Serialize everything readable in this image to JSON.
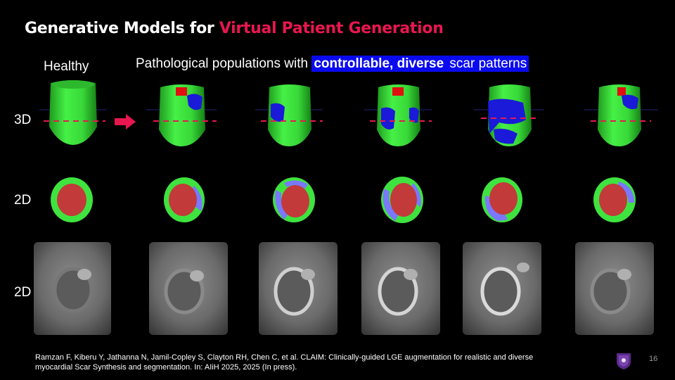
{
  "slide": {
    "title_main": "Generative Models for ",
    "title_accent": "Virtual Patient Generation",
    "label_healthy": "Healthy",
    "label_path_prefix": "Pathological populations with ",
    "label_path_highlight": "controllable, diverse",
    "label_path_suffix": " scar patterns",
    "row_labels": [
      "3D",
      "2D",
      "2D"
    ],
    "citation_line1": "Ramzan F, Kiberu Y, Jathanna N, Jamil-Copley S, Clayton RH, Chen C, et al. CLAIM: Clinically-guided LGE augmentation for realistic and diverse",
    "citation_line2": "myocardial Scar Synthesis and segmentation. In: AIiH 2025, 2025 (In press).",
    "page_number": "16"
  },
  "colors": {
    "accent": "#e8174f",
    "highlight": "#0a0af0",
    "myocardium": "#3fe33f",
    "scar": "#1a1ad8",
    "blood_pool": "#c23a3a"
  },
  "icons": [
    "right-arrow-icon",
    "university-crest-icon"
  ]
}
